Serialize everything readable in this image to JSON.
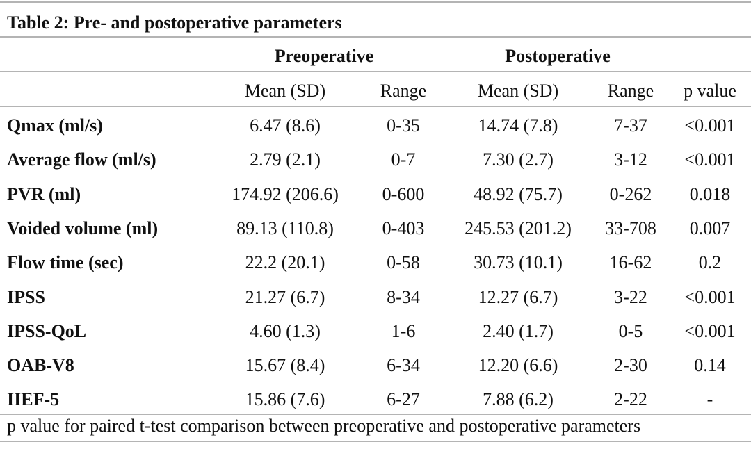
{
  "table": {
    "title": "Table 2: Pre- and postoperative parameters",
    "group_headers": {
      "pre": "Preoperative",
      "post": "Postoperative"
    },
    "column_headers": [
      "",
      "Mean (SD)",
      "Range",
      "Mean (SD)",
      "Range",
      "p value"
    ],
    "rows": [
      [
        "Qmax (ml/s)",
        "6.47 (8.6)",
        "0-35",
        "14.74 (7.8)",
        "7-37",
        "<0.001"
      ],
      [
        "Average flow (ml/s)",
        "2.79 (2.1)",
        "0-7",
        "7.30 (2.7)",
        "3-12",
        "<0.001"
      ],
      [
        "PVR (ml)",
        "174.92 (206.6)",
        "0-600",
        "48.92 (75.7)",
        "0-262",
        "0.018"
      ],
      [
        "Voided volume (ml)",
        "89.13 (110.8)",
        "0-403",
        "245.53 (201.2)",
        "33-708",
        "0.007"
      ],
      [
        "Flow time (sec)",
        "22.2 (20.1)",
        "0-58",
        "30.73 (10.1)",
        "16-62",
        "0.2"
      ],
      [
        "IPSS",
        "21.27 (6.7)",
        "8-34",
        "12.27 (6.7)",
        "3-22",
        "<0.001"
      ],
      [
        "IPSS-QoL",
        "4.60 (1.3)",
        "1-6",
        "2.40 (1.7)",
        "0-5",
        "<0.001"
      ],
      [
        "OAB-V8",
        "15.67 (8.4)",
        "6-34",
        "12.20 (6.6)",
        "2-30",
        "0.14"
      ],
      [
        "IIEF-5",
        "15.86 (7.6)",
        "6-27",
        "7.88 (6.2)",
        "2-22",
        "-"
      ]
    ],
    "footnote": "p value for paired t-test comparison between preoperative and postoperative parameters"
  }
}
